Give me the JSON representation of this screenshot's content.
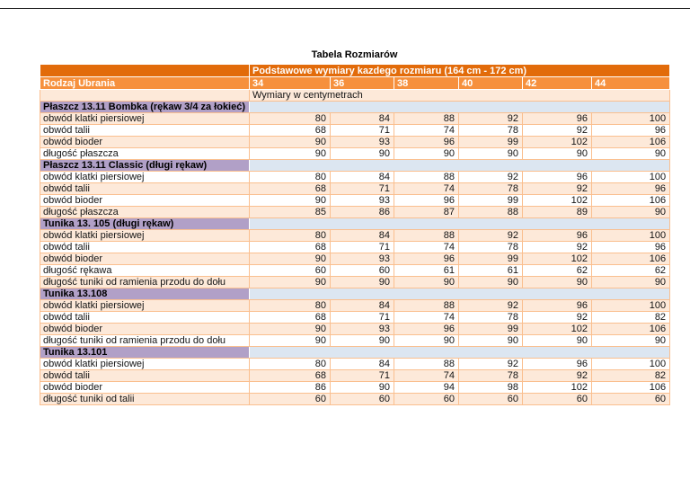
{
  "page": {
    "title": "Tabela Rozmiarów"
  },
  "colors": {
    "header_dark_orange": "#E26B0A",
    "header_light_orange": "#F6903D",
    "row_peach": "#FDE9D9",
    "row_white": "#FFFFFF",
    "section_purple": "#B1A0C7",
    "section_blue": "#DCE6F1",
    "grid_border": "#FABF8F"
  },
  "table": {
    "top_header": "Podstawowe wymiary kazdego rozmiaru (164 cm - 172 cm)",
    "row_label_header": "Rodzaj Ubrania",
    "size_columns": [
      "34",
      "36",
      "38",
      "40",
      "42",
      "44"
    ],
    "unit_note": "Wymiary w centymetrach",
    "sections": [
      {
        "title": "Płaszcz 13.11 Bombka (rękaw 3/4 za łokieć)",
        "first_row_shade": "peach",
        "rows": [
          {
            "label": "obwód klatki piersiowej",
            "values": [
              80,
              84,
              88,
              92,
              96,
              100
            ]
          },
          {
            "label": "obwód talii",
            "values": [
              68,
              71,
              74,
              78,
              92,
              96
            ]
          },
          {
            "label": "obwód bioder",
            "values": [
              90,
              93,
              96,
              99,
              102,
              106
            ]
          },
          {
            "label": "długość płaszcza",
            "values": [
              90,
              90,
              90,
              90,
              90,
              90
            ]
          }
        ]
      },
      {
        "title": "Płaszcz 13.11 Classic (długi rękaw)",
        "first_row_shade": "white",
        "rows": [
          {
            "label": "obwód klatki piersiowej",
            "values": [
              80,
              84,
              88,
              92,
              96,
              100
            ]
          },
          {
            "label": "obwód talii",
            "values": [
              68,
              71,
              74,
              78,
              92,
              96
            ]
          },
          {
            "label": "obwód bioder",
            "values": [
              90,
              93,
              96,
              99,
              102,
              106
            ]
          },
          {
            "label": "długość płaszcza",
            "values": [
              85,
              86,
              87,
              88,
              89,
              90
            ]
          }
        ]
      },
      {
        "title": "Tunika 13. 105 (długi rękaw)",
        "first_row_shade": "peach",
        "rows": [
          {
            "label": "obwód klatki piersiowej",
            "values": [
              80,
              84,
              88,
              92,
              96,
              100
            ]
          },
          {
            "label": "obwód talii",
            "values": [
              68,
              71,
              74,
              78,
              92,
              96
            ]
          },
          {
            "label": "obwód bioder",
            "values": [
              90,
              93,
              96,
              99,
              102,
              106
            ]
          },
          {
            "label": "długość rękawa",
            "values": [
              60,
              60,
              61,
              61,
              62,
              62
            ]
          },
          {
            "label": "długość tuniki od ramienia przodu do dołu",
            "values": [
              90,
              90,
              90,
              90,
              90,
              90
            ]
          }
        ]
      },
      {
        "title": "Tunika 13.108",
        "first_row_shade": "peach",
        "rows": [
          {
            "label": "obwód klatki piersiowej",
            "values": [
              80,
              84,
              88,
              92,
              96,
              100
            ]
          },
          {
            "label": "obwód talii",
            "values": [
              68,
              71,
              74,
              78,
              92,
              82
            ]
          },
          {
            "label": "obwód bioder",
            "values": [
              90,
              93,
              96,
              99,
              102,
              106
            ]
          },
          {
            "label": "długość tuniki od ramienia przodu do dołu",
            "values": [
              90,
              90,
              90,
              90,
              90,
              90
            ]
          }
        ]
      },
      {
        "title": "Tunika 13.101",
        "first_row_shade": "white",
        "rows": [
          {
            "label": "obwód klatki piersiowej",
            "values": [
              80,
              84,
              88,
              92,
              96,
              100
            ]
          },
          {
            "label": "obwód talii",
            "values": [
              68,
              71,
              74,
              78,
              92,
              82
            ]
          },
          {
            "label": "obwód bioder",
            "values": [
              86,
              90,
              94,
              98,
              102,
              106
            ]
          },
          {
            "label": "długość tuniki od talii",
            "values": [
              60,
              60,
              60,
              60,
              60,
              60
            ]
          }
        ]
      }
    ]
  }
}
